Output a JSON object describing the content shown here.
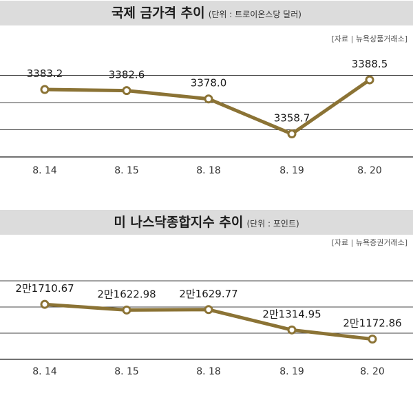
{
  "colors": {
    "line": "#8b7335",
    "marker_fill": "#ffffff",
    "grid": "#444444",
    "header_bg": "#dcdcdc"
  },
  "chart_data": [
    {
      "type": "line",
      "title": "국제 금가격 추이",
      "unit_note": "(단위 : 트로이온스당 달러)",
      "source": "[자료 | 뉴욕상품거래소]",
      "categories": [
        "8. 14",
        "8. 15",
        "8. 18",
        "8. 19",
        "8. 20"
      ],
      "values": [
        3383.2,
        3382.6,
        3378.0,
        3358.7,
        3388.5
      ],
      "data_labels": [
        "3383.2",
        "3382.6",
        "3378.0",
        "3358.7",
        "3388.5"
      ],
      "ylim": [
        3346,
        3406
      ],
      "gridlines": 4
    },
    {
      "type": "line",
      "title": "미 나스닥종합지수 추이",
      "unit_note": "(단위 : 포인트)",
      "source": "[자료 | 뉴욕증권거래소]",
      "categories": [
        "8. 14",
        "8. 15",
        "8. 18",
        "8. 19",
        "8. 20"
      ],
      "values": [
        21710.67,
        21622.98,
        21629.77,
        21314.95,
        21172.86
      ],
      "data_labels": [
        "2만1710.67",
        "2만1622.98",
        "2만1629.77",
        "2만1314.95",
        "2만1172.86"
      ],
      "ylim": [
        20860,
        22480
      ],
      "gridlines": 4
    }
  ]
}
